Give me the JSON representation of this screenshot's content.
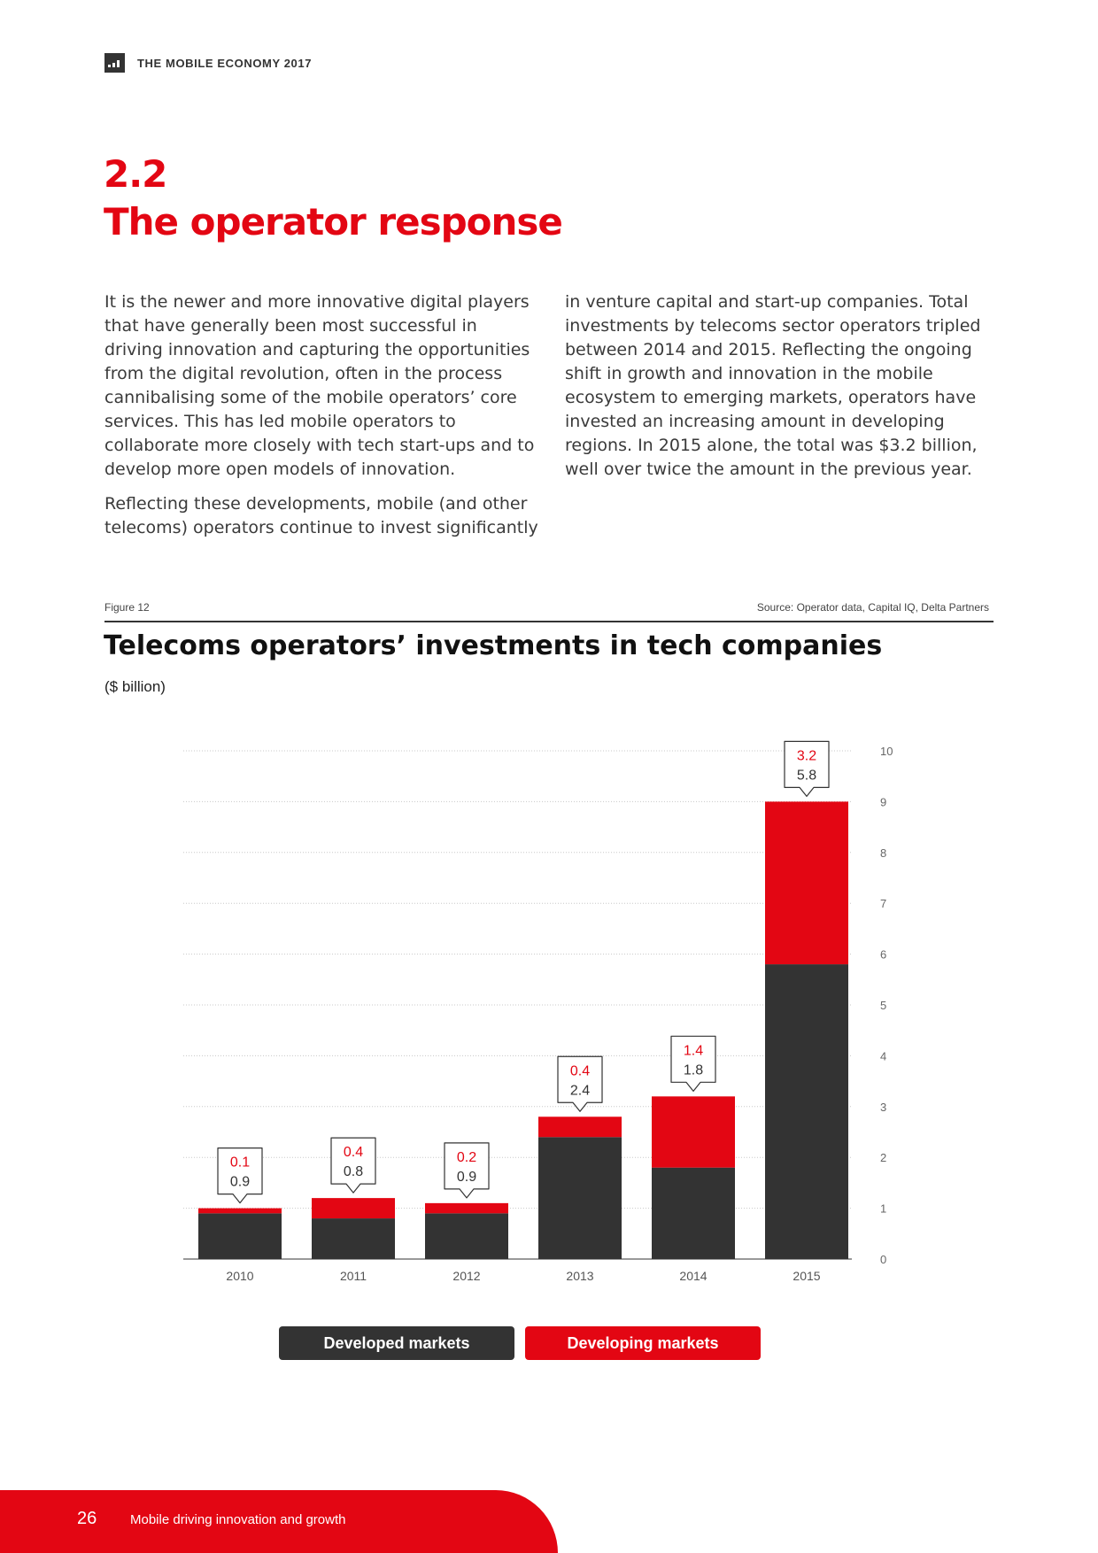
{
  "header": {
    "title": "THE MOBILE ECONOMY 2017"
  },
  "section": {
    "number": "2.2",
    "title": "The operator response"
  },
  "body": {
    "left_paragraphs": [
      "It is the newer and more innovative digital players that have generally been most successful in driving innovation and capturing the opportunities from the digital revolution, often in the process cannibalising some of the mobile operators’ core services. This has led mobile operators to collaborate more closely with tech start-ups and to develop more open models of innovation.",
      "Reflecting these developments, mobile (and other telecoms) operators continue to invest significantly"
    ],
    "right_paragraphs": [
      "in venture capital and start-up companies. Total investments by telecoms sector operators tripled between 2014 and 2015. Reflecting the ongoing shift in growth and innovation in the mobile ecosystem to emerging markets, operators have invested an increasing amount in developing regions. In 2015 alone, the total was $3.2 billion, well over twice the amount in the previous year."
    ]
  },
  "figure": {
    "label": "Figure 12",
    "source": "Source: Operator data, Capital IQ, Delta Partners",
    "title": "Telecoms operators’ investments in tech companies",
    "unit": "($ billion)"
  },
  "chart_data": {
    "type": "bar",
    "stacked": true,
    "categories": [
      "2010",
      "2011",
      "2012",
      "2013",
      "2014",
      "2015"
    ],
    "series": [
      {
        "name": "Developed markets",
        "values": [
          0.9,
          0.8,
          0.9,
          2.4,
          1.8,
          5.8
        ],
        "color": "#333333"
      },
      {
        "name": "Developing markets",
        "values": [
          0.1,
          0.4,
          0.2,
          0.4,
          1.4,
          3.2
        ],
        "color": "#e30613"
      }
    ],
    "ylim": [
      0,
      10
    ],
    "yticks": [
      "0",
      "1",
      "2",
      "3",
      "4",
      "5",
      "6",
      "7",
      "8",
      "9",
      "10"
    ],
    "y_axis_position": "right",
    "grid": true,
    "legend_position": "bottom"
  },
  "legend": {
    "developed": "Developed markets",
    "developing": "Developing markets"
  },
  "footer": {
    "page_number": "26",
    "text": "Mobile driving innovation and growth"
  }
}
